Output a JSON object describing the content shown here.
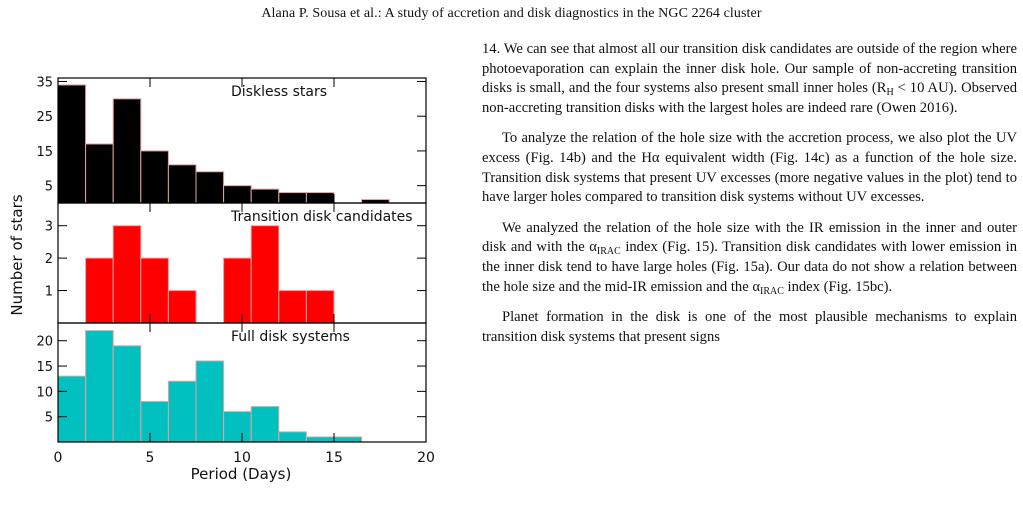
{
  "header": {
    "running_title": "Alana P. Sousa  et al.: A study of accretion and disk diagnostics in the NGC 2264 cluster"
  },
  "figure": {
    "y_axis_label": "Number of stars",
    "x_axis_label": "Period (Days)",
    "x_ticks": [
      "0",
      "5",
      "10",
      "15",
      "20"
    ]
  },
  "chart_data": [
    {
      "type": "bar",
      "title": "Diskless stars",
      "bin_edges": [
        0,
        1.5,
        3,
        4.5,
        6,
        7.5,
        9,
        10.5,
        12,
        13.5,
        15,
        16.5,
        18
      ],
      "values": [
        34,
        17,
        30,
        15,
        11,
        9,
        5,
        4,
        3,
        3,
        0,
        1
      ],
      "ylim": [
        0,
        36
      ],
      "y_ticks": [
        "5",
        "15",
        "25",
        "35"
      ],
      "xlim": [
        0,
        20
      ],
      "color": "#000000"
    },
    {
      "type": "bar",
      "title": "Transition disk candidates",
      "bin_edges": [
        0,
        1.5,
        3,
        4.5,
        6,
        7.5,
        9,
        10.5,
        12,
        13.5,
        15,
        16.5,
        18
      ],
      "values": [
        0,
        2,
        3,
        2,
        1,
        0,
        2,
        3,
        1,
        1,
        0,
        0
      ],
      "ylim": [
        0,
        3.7
      ],
      "y_ticks": [
        "1",
        "2",
        "3"
      ],
      "xlim": [
        0,
        20
      ],
      "color": "#ff0000"
    },
    {
      "type": "bar",
      "title": "Full disk systems",
      "bin_edges": [
        0,
        1.5,
        3,
        4.5,
        6,
        7.5,
        9,
        10.5,
        12,
        13.5,
        15,
        16.5,
        18
      ],
      "values": [
        13,
        22,
        19,
        8,
        12,
        16,
        6,
        7,
        2,
        1,
        1,
        0
      ],
      "ylim": [
        0,
        23.5
      ],
      "y_ticks": [
        "5",
        "10",
        "15",
        "20"
      ],
      "xlim": [
        0,
        20
      ],
      "color": "#00c0c0"
    }
  ],
  "text": {
    "p1_a": "14. We can see that almost all our transition disk candidates are outside of the region where photoevaporation can explain the inner disk hole. Our sample of non-accreting transition disks is small, and the four systems also present small inner holes (R",
    "p1_sub": "H",
    "p1_b": " < 10 AU). Observed non-accreting transition disks with the largest holes are indeed rare (Owen 2016).",
    "p2": "To analyze the relation of the hole size with the accretion process, we also plot the UV excess (Fig. 14b) and the Hα equivalent width (Fig. 14c) as a function of the hole size. Transition disk systems that present UV excesses (more negative values in the plot) tend to have larger holes compared to transition disk systems without UV excesses.",
    "p3_a": "We analyzed the relation of the hole size with the IR emission in the inner and outer disk and with the α",
    "p3_sub1": "IRAC",
    "p3_b": " index (Fig. 15). Transition disk candidates with lower emission in the inner disk tend to have large holes (Fig. 15a). Our data do not show a relation between the hole size and the mid-IR emission and the α",
    "p3_sub2": "IRAC",
    "p3_c": " index (Fig. 15bc).",
    "p4": "Planet formation in the disk is one of the most plausible mechanisms to explain transition disk systems that present signs"
  }
}
